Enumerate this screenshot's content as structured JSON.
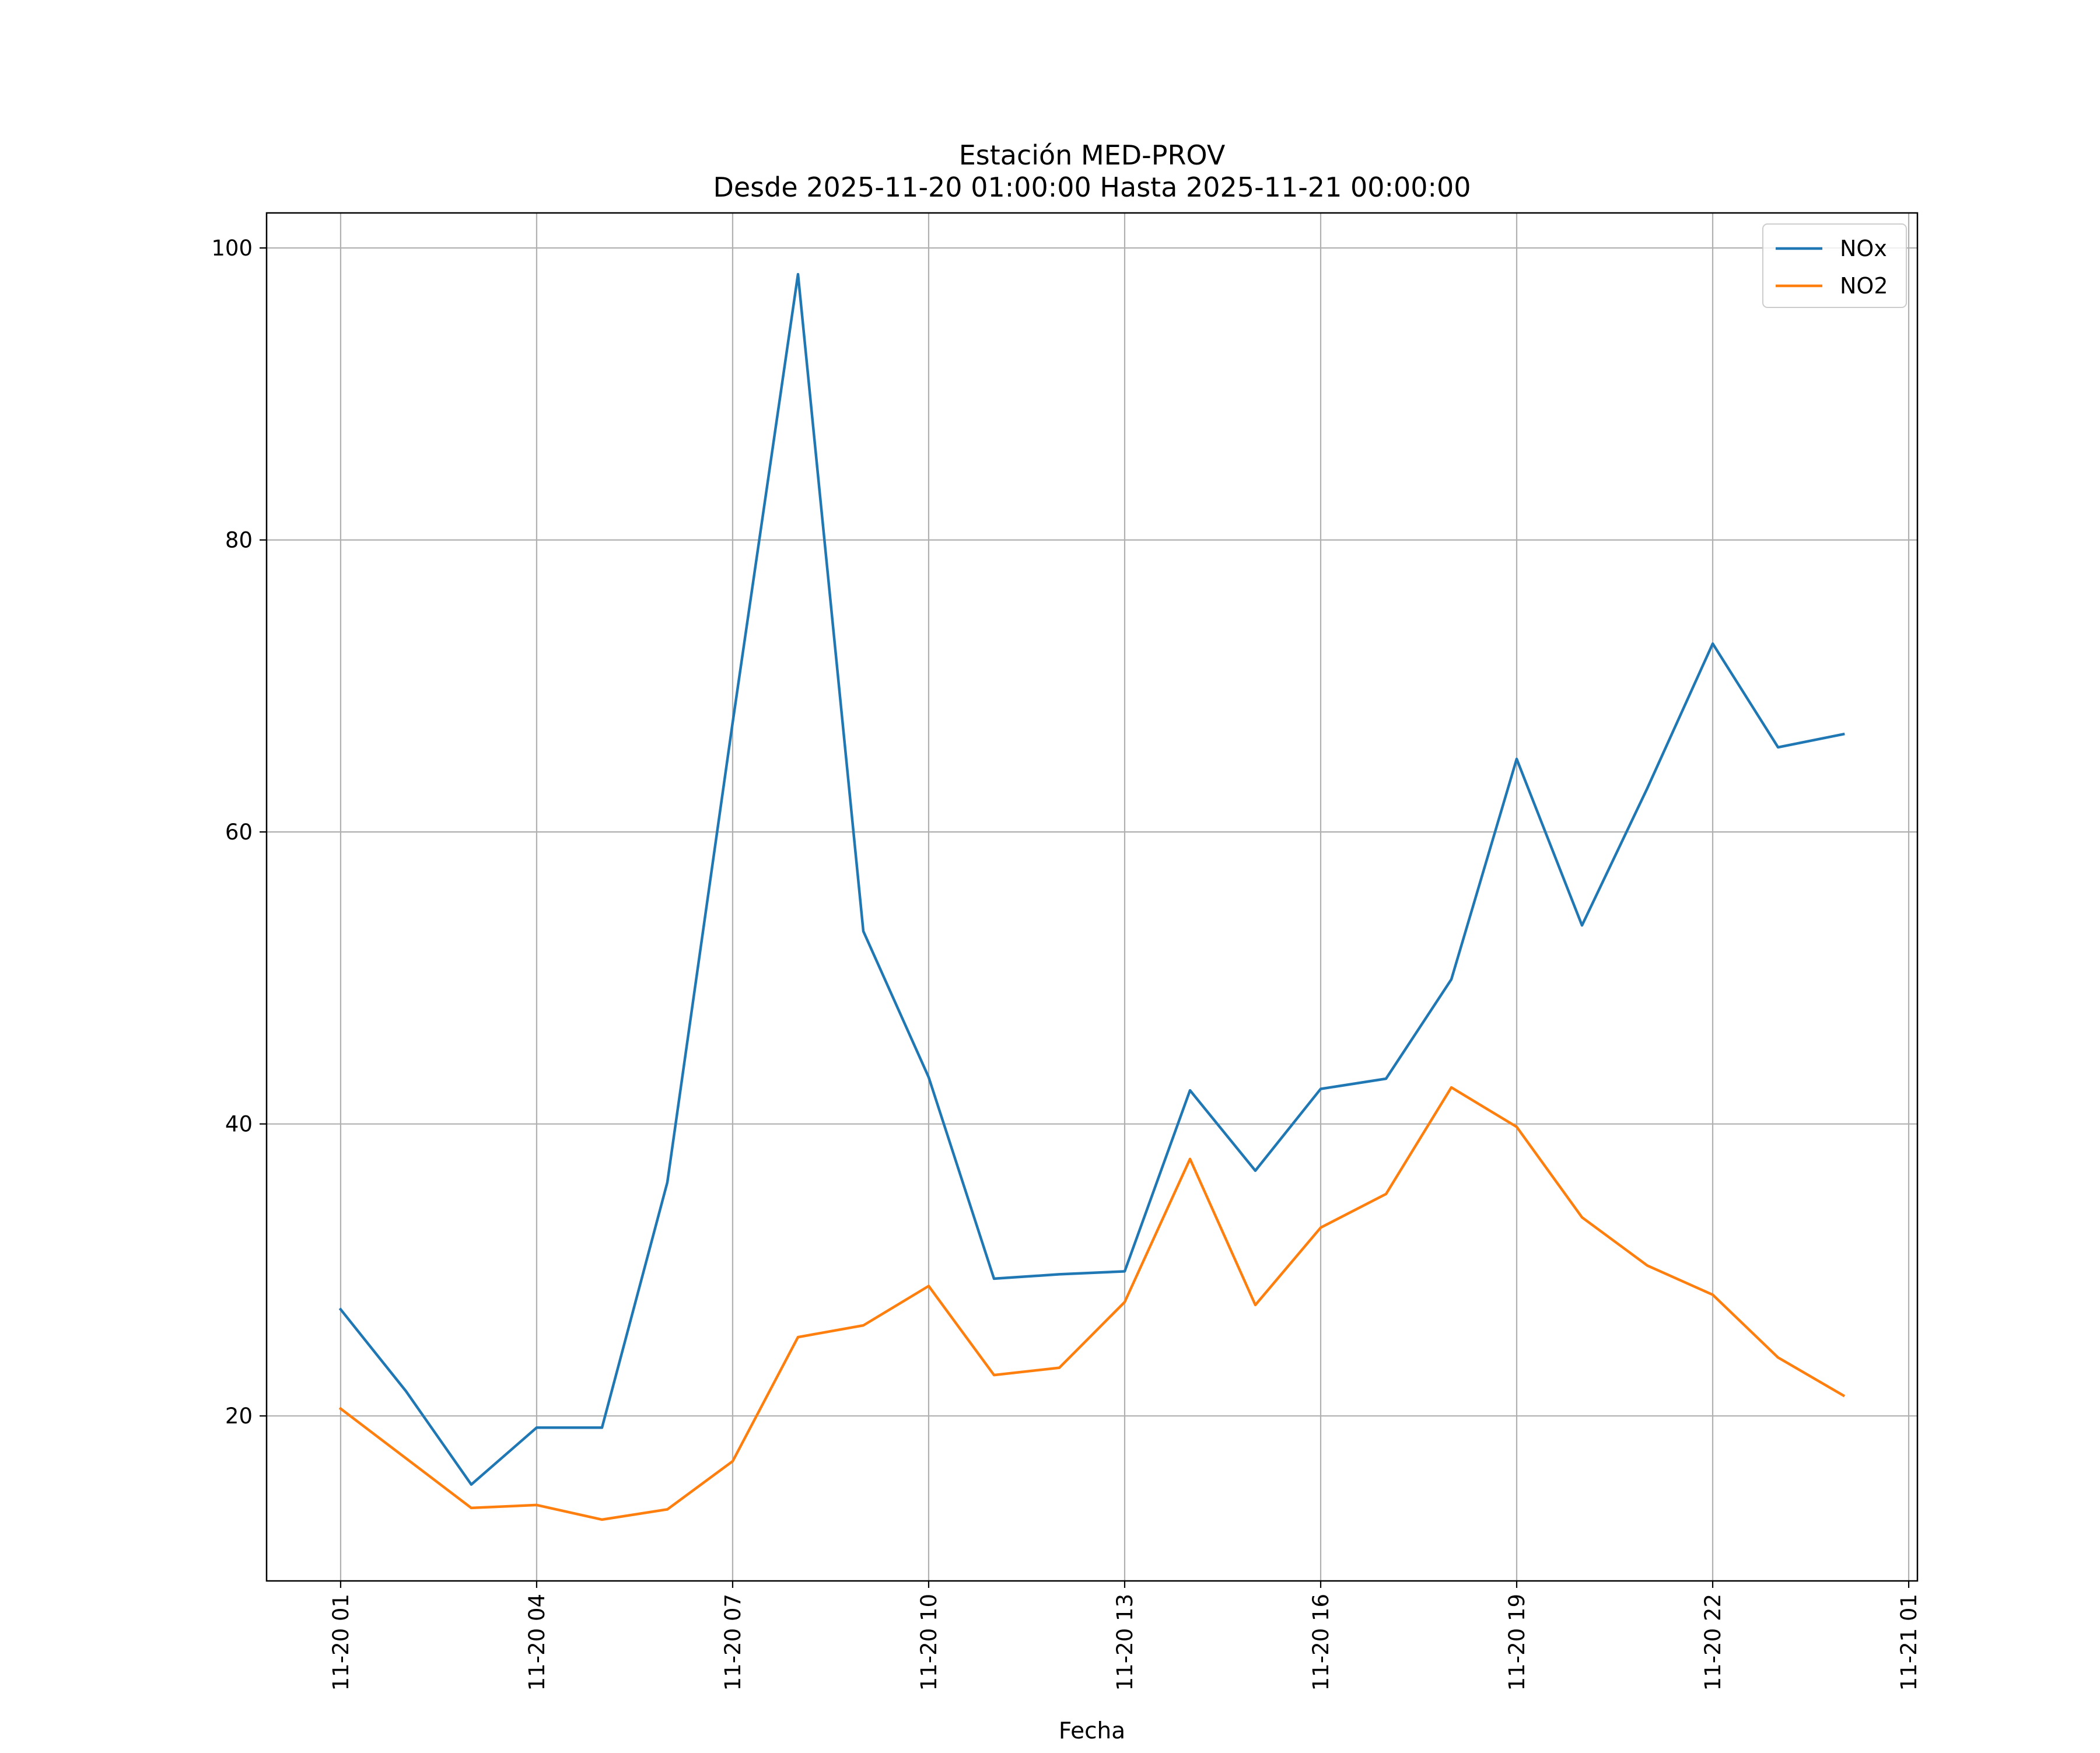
{
  "chart_data": {
    "type": "line",
    "title": "Estación MED-PROV",
    "subtitle": "Desde 2025-11-20 01:00:00 Hasta 2025-11-21 00:00:00",
    "xlabel": "Fecha",
    "ylabel": "",
    "x_ticks": [
      "11-20 01",
      "11-20 04",
      "11-20 07",
      "11-20 10",
      "11-20 13",
      "11-20 16",
      "11-20 19",
      "11-20 22",
      "11-21 01"
    ],
    "y_ticks": [
      20,
      40,
      60,
      80,
      100
    ],
    "xlim": [
      "2025-11-19 23:52",
      "2025-11-21 01:08"
    ],
    "ylim": [
      8.7,
      102.4
    ],
    "grid": true,
    "legend": "top-right",
    "x": [
      "2025-11-20 01:00",
      "2025-11-20 02:00",
      "2025-11-20 03:00",
      "2025-11-20 04:00",
      "2025-11-20 05:00",
      "2025-11-20 06:00",
      "2025-11-20 07:00",
      "2025-11-20 08:00",
      "2025-11-20 09:00",
      "2025-11-20 10:00",
      "2025-11-20 11:00",
      "2025-11-20 12:00",
      "2025-11-20 13:00",
      "2025-11-20 14:00",
      "2025-11-20 15:00",
      "2025-11-20 16:00",
      "2025-11-20 17:00",
      "2025-11-20 18:00",
      "2025-11-20 19:00",
      "2025-11-20 20:00",
      "2025-11-20 21:00",
      "2025-11-20 22:00",
      "2025-11-20 23:00",
      "2025-11-21 00:00"
    ],
    "series": [
      {
        "name": "NOx",
        "color": "#1f77b4",
        "values": [
          27.3,
          21.7,
          15.3,
          19.2,
          19.2,
          36.0,
          67.5,
          98.2,
          53.2,
          43.2,
          29.4,
          29.7,
          29.9,
          42.3,
          36.8,
          42.4,
          43.1,
          49.9,
          65.0,
          53.6,
          63.0,
          72.9,
          65.8,
          66.7
        ]
      },
      {
        "name": "NO2",
        "color": "#ff7f0e",
        "values": [
          20.5,
          17.1,
          13.7,
          13.9,
          12.9,
          13.6,
          16.9,
          25.4,
          26.2,
          28.9,
          22.8,
          23.3,
          27.8,
          37.6,
          27.6,
          32.9,
          35.2,
          42.5,
          39.8,
          33.6,
          30.3,
          28.3,
          24.0,
          21.4
        ]
      }
    ]
  }
}
